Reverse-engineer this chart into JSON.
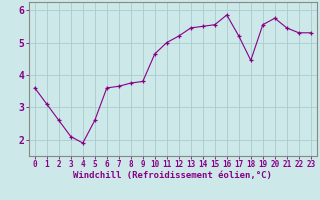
{
  "x": [
    0,
    1,
    2,
    3,
    4,
    5,
    6,
    7,
    8,
    9,
    10,
    11,
    12,
    13,
    14,
    15,
    16,
    17,
    18,
    19,
    20,
    21,
    22,
    23
  ],
  "y": [
    3.6,
    3.1,
    2.6,
    2.1,
    1.9,
    2.6,
    3.6,
    3.65,
    3.75,
    3.8,
    4.65,
    5.0,
    5.2,
    5.45,
    5.5,
    5.55,
    5.85,
    5.2,
    4.45,
    5.55,
    5.75,
    5.45,
    5.3,
    5.3
  ],
  "line_color": "#880088",
  "marker": "+",
  "bg_color": "#cce8e8",
  "plot_bg_color": "#cce8e8",
  "grid_color": "#aacccc",
  "xlabel": "Windchill (Refroidissement éolien,°C)",
  "xlim": [
    -0.5,
    23.5
  ],
  "ylim": [
    1.5,
    6.25
  ],
  "yticks": [
    2,
    3,
    4,
    5,
    6
  ],
  "ytick_labels": [
    "2",
    "3",
    "4",
    "5",
    "6"
  ],
  "xtick_labels": [
    "0",
    "1",
    "2",
    "3",
    "4",
    "5",
    "6",
    "7",
    "8",
    "9",
    "10",
    "11",
    "12",
    "13",
    "14",
    "15",
    "16",
    "17",
    "18",
    "19",
    "20",
    "21",
    "22",
    "23"
  ],
  "xlabel_color": "#880088",
  "xlabel_fontsize": 6.5,
  "ytick_fontsize": 7,
  "xtick_fontsize": 5.5,
  "tick_color": "#880088",
  "spine_color": "#888888",
  "linewidth": 0.8,
  "markersize": 3.5,
  "bottom_bar_color": "#880088",
  "bottom_bar_text_color": "#cce8e8"
}
